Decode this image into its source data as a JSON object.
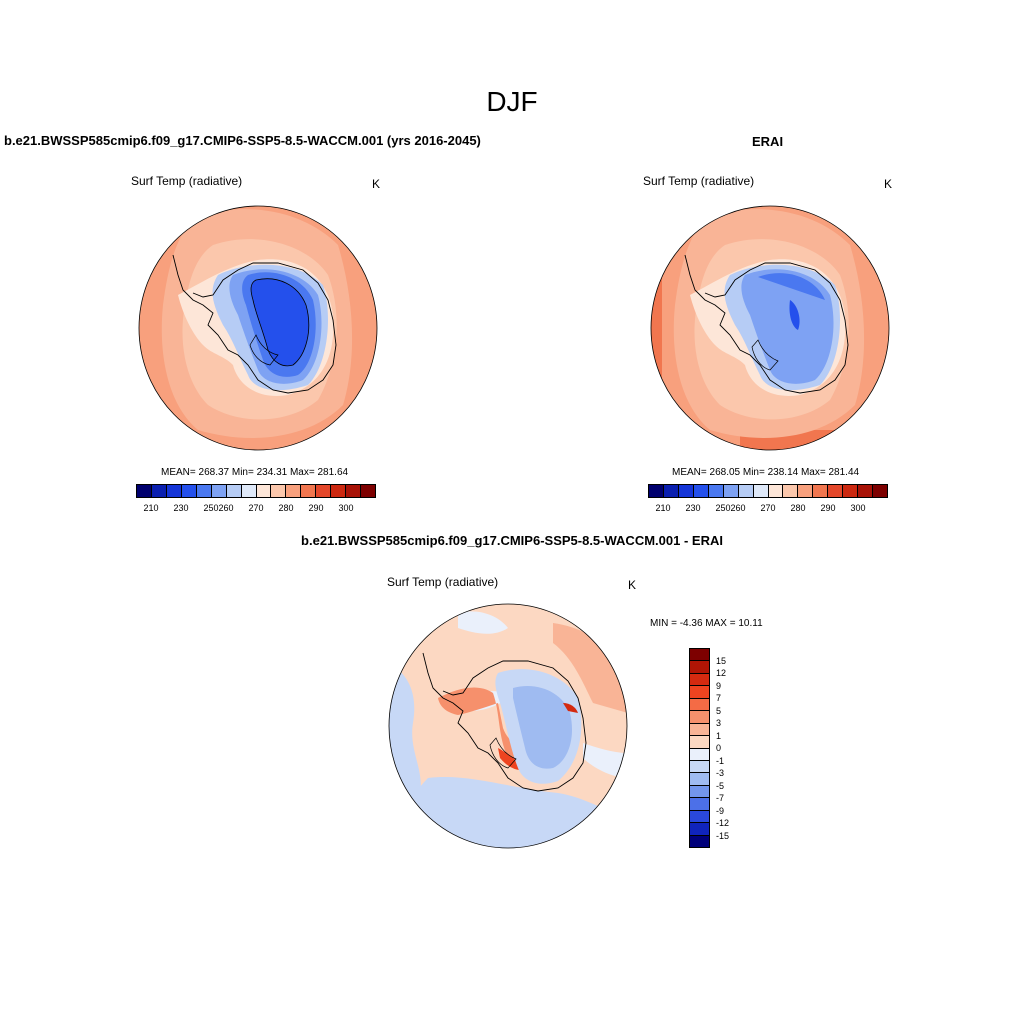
{
  "title": "DJF",
  "panels": [
    {
      "title": "b.e21.BWSSP585cmip6.f09_g17.CMIP6-SSP5-8.5-WACCM.001 (yrs 2016-2045)",
      "variable": "Surf Temp (radiative)",
      "units": "K",
      "stats": "MEAN= 268.37  Min= 234.31  Max= 281.64"
    },
    {
      "title": "ERAI",
      "variable": "Surf Temp (radiative)",
      "units": "K",
      "stats": "MEAN= 268.05  Min= 238.14  Max= 281.44"
    },
    {
      "title": "b.e21.BWSSP585cmip6.f09_g17.CMIP6-SSP5-8.5-WACCM.001 - ERAI",
      "variable": "Surf Temp (radiative)",
      "units": "K",
      "stats": "MIN =  -4.36 MAX =  10.11"
    }
  ],
  "colorbar_abs": {
    "ticks": [
      "210",
      "230",
      "250",
      "260",
      "270",
      "280",
      "290",
      "300"
    ],
    "colors": [
      "#00006e",
      "#0a1fb0",
      "#1535d8",
      "#2450ec",
      "#4a78f0",
      "#7ea2f3",
      "#b6ccf5",
      "#dfe9f9",
      "#fde6d8",
      "#fbc7ac",
      "#f8a07d",
      "#f1764f",
      "#e4472a",
      "#cc2810",
      "#a81207",
      "#7d0000"
    ]
  },
  "colorbar_diff": {
    "ticks": [
      "15",
      "12",
      "9",
      "7",
      "5",
      "3",
      "1",
      "0",
      "-1",
      "-3",
      "-5",
      "-7",
      "-9",
      "-12",
      "-15"
    ],
    "colors": [
      "#7d0000",
      "#b01505",
      "#d42a10",
      "#ee4420",
      "#f46b45",
      "#f6906c",
      "#f9b496",
      "#fcd8c2",
      "#eaf0fb",
      "#c7d8f6",
      "#9fbbf1",
      "#7396ec",
      "#4c70e8",
      "#2a48dc",
      "#1024bc",
      "#00007a"
    ]
  }
}
